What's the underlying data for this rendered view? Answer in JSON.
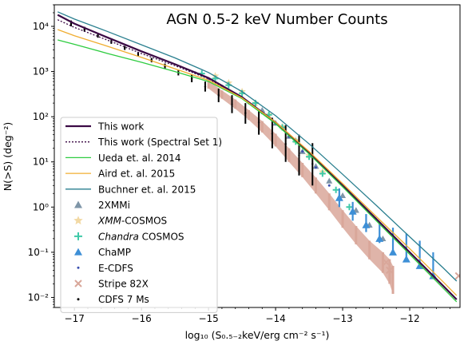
{
  "chart_data": {
    "type": "line",
    "title": "AGN 0.5-2 keV Number Counts",
    "xlabel": "log₁₀ (S₀.₅₋₂keV/erg cm⁻² s⁻¹)",
    "ylabel": "N(>S) (deg⁻²)",
    "xlim": [
      -17.3,
      -11.25
    ],
    "ylim": [
      0.006,
      30000
    ],
    "yscale": "log",
    "x_ticks": [
      -17,
      -16,
      -15,
      -14,
      -13,
      -12
    ],
    "x_tick_labels": [
      "−17",
      "−16",
      "−15",
      "−14",
      "−13",
      "−12"
    ],
    "y_tick_labels": [
      "10⁻²",
      "10⁻¹",
      "10⁰",
      "10¹",
      "10²",
      "10³",
      "10⁴"
    ],
    "grid": false,
    "legend_position": "lower-left",
    "series": [
      {
        "name": "This work",
        "kind": "line",
        "color": "#3b0a45",
        "width": 2.2,
        "dash": "",
        "x": [
          -17.25,
          -17.0,
          -16.5,
          -16.0,
          -15.5,
          -15.0,
          -14.5,
          -14.0,
          -13.5,
          -13.0,
          -12.5,
          -12.0,
          -11.5,
          -11.3
        ],
        "y": [
          18000,
          11500,
          5600,
          2800,
          1450,
          720,
          270,
          75,
          16,
          3.0,
          0.55,
          0.1,
          0.018,
          0.009
        ]
      },
      {
        "name": "This work (Spectral Set 1)",
        "kind": "line",
        "color": "#3b0a45",
        "width": 1.3,
        "dash": "2,2",
        "x": [
          -17.25,
          -17.0,
          -16.5,
          -16.0,
          -15.5,
          -15.0,
          -14.5,
          -14.0,
          -13.5,
          -13.0,
          -12.5,
          -12.0,
          -11.5,
          -11.3
        ],
        "y": [
          14000,
          9500,
          4900,
          2500,
          1350,
          690,
          265,
          74,
          16,
          3.0,
          0.56,
          0.1,
          0.018,
          0.009
        ]
      },
      {
        "name": "Ueda et. al. 2014",
        "kind": "line",
        "color": "#2ecc40",
        "width": 1.3,
        "dash": "",
        "x": [
          -17.25,
          -17.0,
          -16.5,
          -16.0,
          -15.5,
          -15.0,
          -14.5,
          -14.0,
          -13.5,
          -13.0,
          -12.5,
          -12.0,
          -11.5,
          -11.3
        ],
        "y": [
          5000,
          4000,
          2500,
          1600,
          1000,
          600,
          250,
          70,
          15,
          2.8,
          0.5,
          0.09,
          0.016,
          0.008
        ]
      },
      {
        "name": "Aird et. al. 2015",
        "kind": "line",
        "color": "#f0ad30",
        "width": 1.3,
        "dash": "",
        "x": [
          -17.25,
          -17.0,
          -16.5,
          -16.0,
          -15.5,
          -15.0,
          -14.5,
          -14.0,
          -13.5,
          -13.0,
          -12.5,
          -12.0,
          -11.5,
          -11.3
        ],
        "y": [
          8500,
          6200,
          3600,
          2050,
          1150,
          640,
          260,
          76,
          17,
          3.3,
          0.62,
          0.12,
          0.022,
          0.011
        ]
      },
      {
        "name": "Buchner et. al. 2015",
        "kind": "line",
        "color": "#2a7f8f",
        "width": 1.3,
        "dash": "",
        "x": [
          -17.25,
          -17.0,
          -16.5,
          -16.0,
          -15.5,
          -15.0,
          -14.5,
          -14.0,
          -13.5,
          -13.0,
          -12.5,
          -12.0,
          -11.5,
          -11.3
        ],
        "y": [
          21000,
          14500,
          7600,
          3900,
          2000,
          950,
          360,
          105,
          25,
          5.3,
          1.1,
          0.22,
          0.045,
          0.023
        ]
      },
      {
        "name": "2XMMi",
        "kind": "marker",
        "marker": "triangle",
        "color": "#7f96a8",
        "x": [
          -14.2,
          -14.0,
          -13.8,
          -13.6,
          -13.4,
          -13.2,
          -13.0,
          -12.8,
          -12.6,
          -12.4
        ],
        "y": [
          140,
          72,
          37,
          17,
          8,
          3.8,
          1.8,
          0.85,
          0.4,
          0.2
        ]
      },
      {
        "name": "XMM-COSMOS",
        "name_italic": "XMM",
        "name_rest": "-COSMOS",
        "kind": "marker",
        "marker": "star",
        "color": "#f2d9a4",
        "x": [
          -14.9,
          -14.7,
          -14.5,
          -14.3,
          -14.1,
          -13.9,
          -13.7,
          -13.5,
          -13.3
        ],
        "y": [
          800,
          560,
          360,
          200,
          110,
          60,
          30,
          14,
          6
        ]
      },
      {
        "name": "Chandra COSMOS",
        "name_italic": "Chandra",
        "name_rest": " COSMOS",
        "kind": "marker",
        "marker": "plus",
        "color": "#3fc9a8",
        "x": [
          -15.1,
          -14.9,
          -14.7,
          -14.5,
          -14.3,
          -14.1,
          -13.9,
          -13.7,
          -13.5,
          -13.3,
          -13.1,
          -12.9
        ],
        "y": [
          900,
          700,
          500,
          330,
          200,
          110,
          58,
          28,
          13,
          5.5,
          2.4,
          1.0
        ]
      },
      {
        "name": "ChaMP",
        "kind": "errorbar",
        "marker": "triangle",
        "color": "#3d8fd6",
        "x": [
          -13.05,
          -12.85,
          -12.65,
          -12.45,
          -12.25,
          -12.05,
          -11.85,
          -11.65
        ],
        "y": [
          1.6,
          0.8,
          0.4,
          0.2,
          0.1,
          0.07,
          0.05,
          0.03
        ],
        "yerr_lo": [
          1.0,
          0.5,
          0.28,
          0.16,
          0.09,
          0.06,
          0.045,
          0.027
        ],
        "yerr_hi": [
          2.6,
          1.3,
          0.7,
          0.45,
          0.35,
          0.26,
          0.18,
          0.1
        ]
      },
      {
        "name": "E-CDFS",
        "kind": "marker",
        "marker": "dot",
        "color": "#3a4fb0",
        "x": [
          -15.2,
          -15.0,
          -14.8,
          -14.6,
          -14.4,
          -14.2,
          -14.0,
          -13.8,
          -13.6,
          -13.4,
          -13.2
        ],
        "y": [
          950,
          700,
          480,
          320,
          200,
          120,
          70,
          36,
          17,
          7.5,
          3
        ]
      },
      {
        "name": "Stripe 82X",
        "kind": "band",
        "marker": "x",
        "color": "#d9a79a",
        "x": [
          -15.0,
          -14.8,
          -14.6,
          -14.4,
          -14.2,
          -14.0,
          -13.8,
          -13.6,
          -13.4,
          -13.2,
          -13.0,
          -12.8,
          -12.6,
          -12.4,
          -12.3,
          -12.25
        ],
        "y_lo": [
          420,
          250,
          150,
          85,
          45,
          22,
          10,
          4.6,
          2.0,
          0.85,
          0.35,
          0.15,
          0.07,
          0.035,
          0.02,
          0.012
        ],
        "y_hi": [
          620,
          380,
          240,
          140,
          80,
          42,
          20,
          9.5,
          4.5,
          2.0,
          0.85,
          0.38,
          0.18,
          0.1,
          0.07,
          0.05
        ],
        "markers_x": [
          -12.35,
          -12.3,
          -11.27
        ],
        "markers_y": [
          0.06,
          0.04,
          0.03
        ]
      },
      {
        "name": "CDFS 7 Ms",
        "kind": "errorbar",
        "marker": "dot",
        "color": "#000000",
        "x": [
          -17.05,
          -16.85,
          -16.65,
          -16.45,
          -16.25,
          -16.05,
          -15.85,
          -15.65,
          -15.45,
          -15.25,
          -15.05,
          -14.85,
          -14.65,
          -14.45,
          -14.25,
          -14.05,
          -13.85,
          -13.65,
          -13.45
        ],
        "y": [
          11500,
          8500,
          6200,
          4500,
          3300,
          2400,
          1800,
          1300,
          950,
          700,
          460,
          300,
          190,
          120,
          75,
          42,
          25,
          14,
          9
        ],
        "yerr_lo": [
          10000,
          7600,
          5600,
          4100,
          3000,
          2200,
          1600,
          1150,
          820,
          580,
          360,
          210,
          120,
          70,
          40,
          20,
          10,
          5,
          3
        ],
        "yerr_hi": [
          13500,
          9800,
          7000,
          5000,
          3700,
          2700,
          2000,
          1500,
          1100,
          850,
          600,
          420,
          300,
          200,
          140,
          95,
          65,
          40,
          26
        ]
      }
    ]
  }
}
